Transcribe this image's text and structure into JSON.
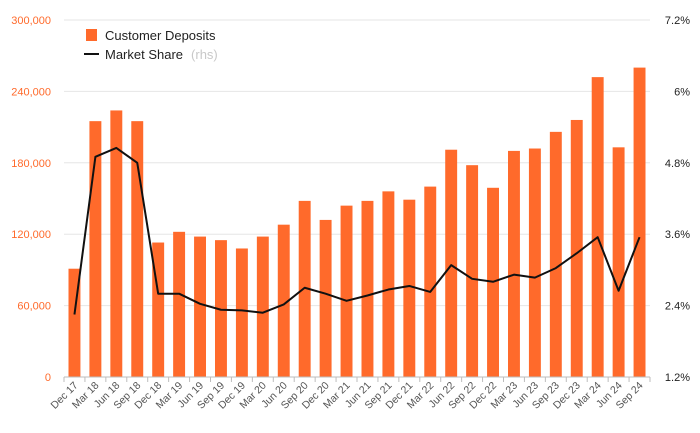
{
  "chart_data": {
    "type": "bar",
    "categories": [
      "Dec 17",
      "Mar 18",
      "Jun 18",
      "Sep 18",
      "Dec 18",
      "Mar 19",
      "Jun 19",
      "Sep 19",
      "Dec 19",
      "Mar 20",
      "Jun 20",
      "Sep 20",
      "Dec 20",
      "Mar 21",
      "Jun 21",
      "Sep 21",
      "Dec 21",
      "Mar 22",
      "Jun 22",
      "Sep 22",
      "Dec 22",
      "Mar 23",
      "Jun 23",
      "Sep 23",
      "Dec 23",
      "Mar 24",
      "Jun 24",
      "Sep 24"
    ],
    "series": [
      {
        "name": "Customer Deposits",
        "axis": "left",
        "kind": "bar",
        "color": "#ff6a2b",
        "values": [
          91000,
          215000,
          224000,
          215000,
          113000,
          122000,
          118000,
          115000,
          108000,
          118000,
          128000,
          148000,
          132000,
          144000,
          148000,
          156000,
          149000,
          160000,
          191000,
          178000,
          159000,
          190000,
          192000,
          206000,
          216000,
          252000,
          193000,
          260000
        ]
      },
      {
        "name": "Market Share",
        "axis": "right",
        "kind": "line",
        "color": "#111111",
        "values": [
          2.25,
          4.9,
          5.05,
          4.8,
          2.6,
          2.6,
          2.43,
          2.33,
          2.32,
          2.28,
          2.42,
          2.7,
          2.6,
          2.48,
          2.57,
          2.67,
          2.73,
          2.63,
          3.08,
          2.85,
          2.8,
          2.92,
          2.87,
          3.03,
          3.28,
          3.55,
          2.65,
          3.55
        ]
      }
    ],
    "legend": {
      "deposits_label": "Customer Deposits",
      "share_label": "Market Share",
      "share_note": "(rhs)",
      "placement": "top-left"
    },
    "y_left": {
      "ylim": [
        0,
        300000
      ],
      "ticks": [
        0,
        60000,
        120000,
        180000,
        240000,
        300000
      ],
      "tick_labels": [
        "0",
        "60,000",
        "120,000",
        "180,000",
        "240,000",
        "300,000"
      ]
    },
    "y_right": {
      "ylim": [
        1.2,
        7.2
      ],
      "ticks": [
        1.2,
        2.4,
        3.6,
        4.8,
        6.0,
        7.2
      ],
      "tick_labels": [
        "1.2%",
        "2.4%",
        "3.6%",
        "4.8%",
        "6%",
        "7.2%"
      ]
    },
    "grid": true,
    "colors": {
      "bar": "#ff6a2b",
      "line": "#111111",
      "left_axis_text": "#ff6a2b",
      "grid": "#e6e6e6"
    }
  }
}
